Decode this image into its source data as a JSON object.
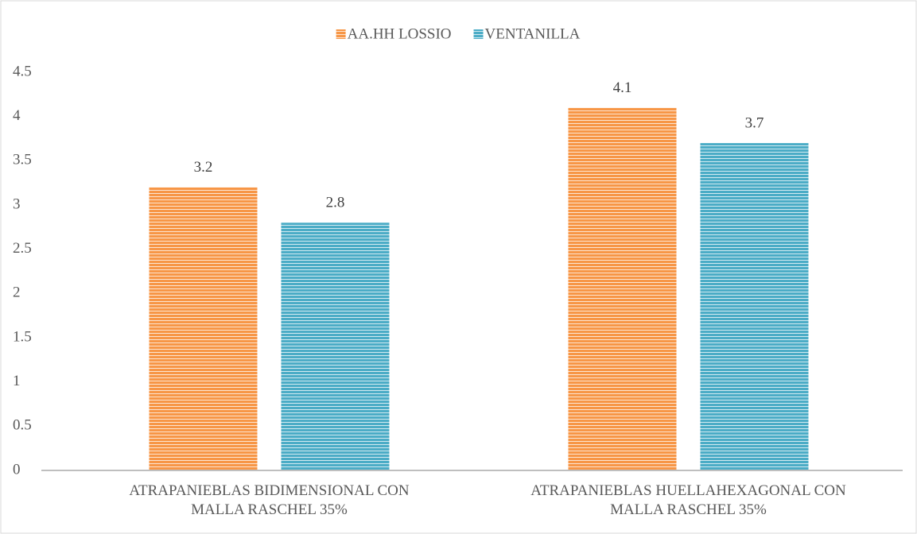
{
  "chart_data": {
    "type": "bar",
    "categories": [
      "ATRAPANIEBLAS BIDIMENSIONAL CON MALLA RASCHEL 35%",
      "ATRAPANIEBLAS HUELLAHEXAGONAL CON MALLA RASCHEL 35%"
    ],
    "series": [
      {
        "name": "AA.HH LOSSIO",
        "color": "#f79646",
        "values": [
          3.2,
          4.1
        ]
      },
      {
        "name": "VENTANILLA",
        "color": "#4bacc6",
        "values": [
          2.8,
          3.7
        ]
      }
    ],
    "ylim": [
      0,
      4.5
    ],
    "yticks": [
      0,
      0.5,
      1,
      1.5,
      2,
      2.5,
      3,
      3.5,
      4,
      4.5
    ],
    "legend": "top",
    "grid": false
  }
}
